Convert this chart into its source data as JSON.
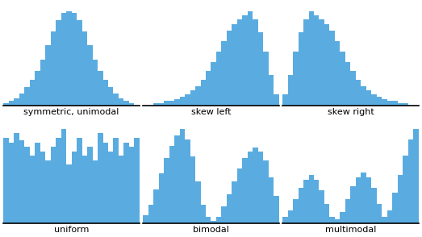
{
  "bar_color": "#5aace0",
  "background_color": "#ffffff",
  "subplots": [
    {
      "title": "symmetric, unimodal",
      "heights": [
        1,
        2,
        3,
        5,
        8,
        11,
        15,
        20,
        26,
        32,
        37,
        40,
        41,
        40,
        37,
        32,
        26,
        20,
        15,
        11,
        8,
        5,
        3,
        2,
        1,
        0
      ]
    },
    {
      "title": "skew left",
      "heights": [
        0,
        0,
        1,
        1,
        2,
        2,
        3,
        4,
        5,
        7,
        9,
        12,
        16,
        20,
        25,
        30,
        35,
        38,
        40,
        42,
        44,
        40,
        34,
        25,
        14,
        5
      ]
    },
    {
      "title": "skew right",
      "heights": [
        5,
        14,
        25,
        34,
        40,
        44,
        42,
        40,
        38,
        35,
        30,
        25,
        20,
        16,
        12,
        9,
        7,
        5,
        4,
        3,
        2,
        2,
        1,
        1,
        0,
        0
      ]
    },
    {
      "title": "uniform",
      "heights": [
        38,
        36,
        40,
        37,
        34,
        30,
        36,
        32,
        28,
        34,
        38,
        42,
        26,
        32,
        38,
        30,
        34,
        28,
        40,
        36,
        32,
        38,
        30,
        36,
        34,
        38
      ]
    },
    {
      "title": "bimodal",
      "heights": [
        4,
        9,
        16,
        24,
        31,
        37,
        42,
        45,
        40,
        32,
        20,
        9,
        3,
        1,
        3,
        8,
        14,
        20,
        26,
        31,
        34,
        36,
        34,
        30,
        22,
        13
      ]
    },
    {
      "title": "multimodal",
      "heights": [
        3,
        6,
        11,
        16,
        20,
        22,
        20,
        15,
        9,
        3,
        2,
        5,
        11,
        17,
        21,
        23,
        21,
        16,
        9,
        3,
        6,
        14,
        22,
        31,
        38,
        43
      ]
    }
  ]
}
